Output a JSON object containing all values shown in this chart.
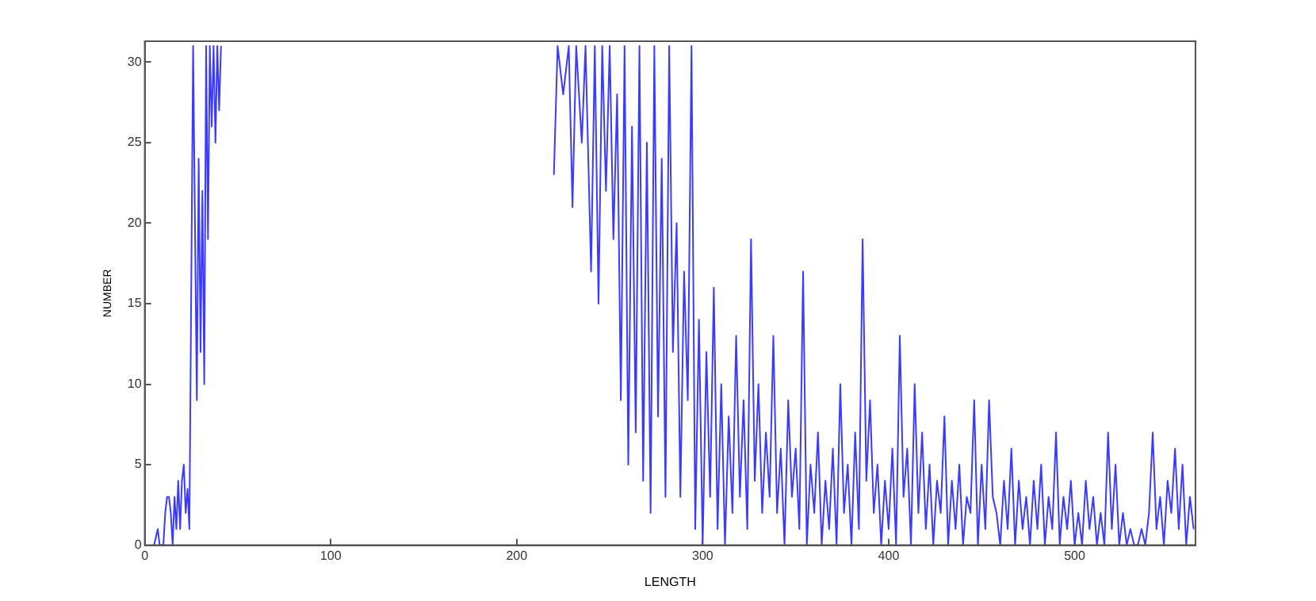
{
  "chart_data": {
    "type": "line",
    "xlabel": "LENGTH",
    "ylabel": "NUMBER",
    "xlim": [
      0,
      565
    ],
    "ylim": [
      0,
      31.3
    ],
    "xticks": [
      0,
      100,
      200,
      300,
      400,
      500
    ],
    "yticks": [
      0,
      5,
      10,
      15,
      20,
      25,
      30
    ],
    "grid": false,
    "legend": false,
    "marker": "none",
    "line_style": "solid",
    "series": [
      {
        "color": "#3b3bff",
        "x": [
          5,
          7,
          8,
          10,
          11,
          12,
          13,
          14,
          15,
          16,
          17,
          18,
          19,
          20,
          21,
          22,
          23,
          24,
          25,
          26,
          27,
          28,
          29,
          30,
          31,
          32,
          33,
          34,
          35,
          36,
          37,
          38,
          39,
          40,
          41,
          130,
          220,
          222,
          225,
          228,
          230,
          232,
          235,
          237,
          240,
          242,
          244,
          246,
          248,
          250,
          252,
          254,
          256,
          258,
          260,
          262,
          264,
          266,
          268,
          270,
          272,
          274,
          276,
          278,
          280,
          282,
          284,
          286,
          288,
          290,
          292,
          294,
          296,
          298,
          300,
          302,
          304,
          306,
          308,
          310,
          312,
          314,
          316,
          318,
          320,
          322,
          324,
          326,
          328,
          330,
          332,
          334,
          336,
          338,
          340,
          342,
          344,
          346,
          348,
          350,
          352,
          354,
          356,
          358,
          360,
          362,
          364,
          366,
          368,
          370,
          372,
          374,
          376,
          378,
          380,
          382,
          384,
          386,
          388,
          390,
          392,
          394,
          396,
          398,
          400,
          402,
          404,
          406,
          408,
          410,
          412,
          414,
          416,
          418,
          420,
          422,
          424,
          426,
          428,
          430,
          432,
          434,
          436,
          438,
          440,
          442,
          444,
          446,
          448,
          450,
          452,
          454,
          456,
          458,
          460,
          462,
          464,
          466,
          468,
          470,
          472,
          474,
          476,
          478,
          480,
          482,
          484,
          486,
          488,
          490,
          492,
          494,
          496,
          498,
          500,
          502,
          504,
          506,
          508,
          510,
          512,
          514,
          516,
          518,
          520,
          522,
          524,
          526,
          528,
          530,
          532,
          534,
          536,
          538,
          540,
          542,
          544,
          546,
          548,
          550,
          552,
          554,
          556,
          558,
          560,
          562,
          564
        ],
        "values": [
          0,
          1,
          0,
          0,
          2,
          3,
          3,
          2,
          0,
          3,
          1,
          4,
          1,
          4,
          5,
          2,
          3.5,
          1,
          16,
          31,
          20,
          9,
          24,
          12,
          22,
          10,
          31,
          19,
          31,
          26,
          31,
          25,
          31,
          27,
          31,
          null,
          23,
          31,
          28,
          31,
          21,
          31,
          25,
          31,
          17,
          31,
          15,
          31,
          22,
          31,
          19,
          28,
          9,
          31,
          5,
          26,
          7,
          31,
          4,
          25,
          2,
          31,
          8,
          24,
          3,
          31,
          12,
          20,
          3,
          17,
          9,
          31,
          1,
          14,
          0,
          12,
          3,
          16,
          1,
          10,
          0,
          8,
          2,
          13,
          3,
          9,
          1,
          19,
          4,
          10,
          2,
          7,
          3,
          13,
          2,
          6,
          0,
          9,
          3,
          6,
          1,
          17,
          0,
          5,
          2,
          7,
          0,
          4,
          1,
          6,
          0,
          10,
          2,
          5,
          0,
          7,
          1,
          19,
          4,
          9,
          2,
          5,
          0,
          4,
          1,
          6,
          0,
          13,
          3,
          6,
          0,
          10,
          2,
          7,
          1,
          5,
          0,
          4,
          2,
          8,
          0,
          4,
          1,
          5,
          0,
          3,
          2,
          9,
          0,
          5,
          1,
          9,
          3,
          2,
          0,
          4,
          1,
          6,
          0,
          4,
          1,
          3,
          0,
          4,
          1,
          5,
          0,
          3,
          1,
          7,
          0,
          3,
          1,
          4,
          0,
          2,
          0,
          4,
          1,
          3,
          0,
          2,
          0,
          7,
          1,
          5,
          0,
          2,
          0,
          1,
          0,
          0,
          1,
          0,
          2,
          7,
          1,
          3,
          0,
          4,
          2,
          6,
          1,
          5,
          0,
          3,
          1
        ]
      }
    ]
  }
}
